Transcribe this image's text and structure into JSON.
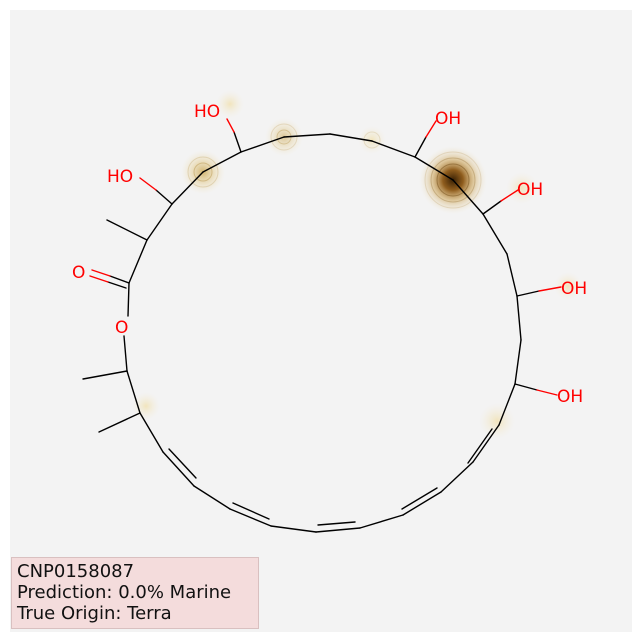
{
  "molecule": {
    "atom_labels": {
      "ho_a": "HO",
      "ho_b": "HO",
      "oh_a": "OH",
      "oh_b": "OH",
      "oh_c": "OH",
      "oh_d": "OH",
      "carbonyl_o": "O",
      "ring_o": "O"
    },
    "highlight_color": "#b07a1e"
  },
  "info": {
    "compound_id": "CNP0158087",
    "prediction": "Prediction: 0.0% Marine",
    "true_origin": "True Origin: Terra"
  }
}
